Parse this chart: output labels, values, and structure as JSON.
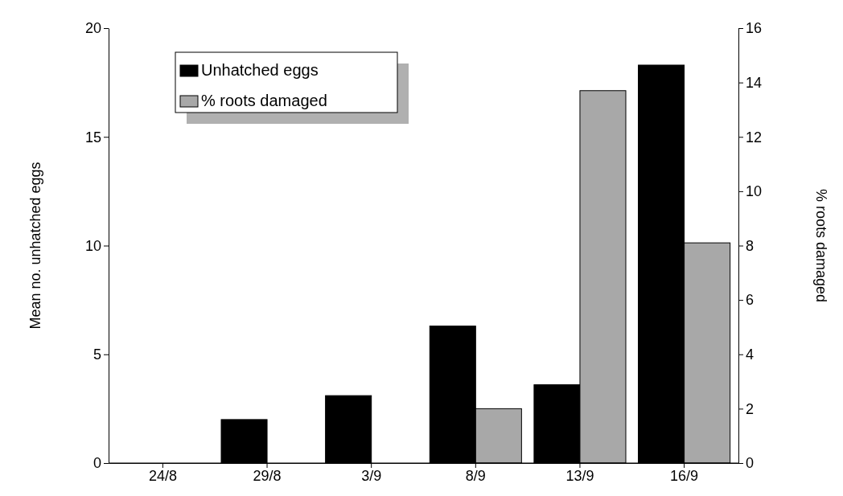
{
  "chart_data": {
    "type": "bar",
    "categories": [
      "24/8",
      "29/8",
      "3/9",
      "8/9",
      "13/9",
      "16/9"
    ],
    "series": [
      {
        "name": "Unhatched eggs",
        "color": "#000000",
        "values": [
          0,
          2.0,
          3.1,
          6.3,
          3.6,
          18.3
        ]
      },
      {
        "name": "% roots damaged",
        "color": "#a8a8a8",
        "axis": "y2",
        "values": [
          0,
          0,
          0,
          2.0,
          13.7,
          8.1
        ]
      }
    ],
    "ylabel": "Mean no. unhatched eggs",
    "y2label": "% roots damaged",
    "ylim": [
      0,
      20
    ],
    "yticks": [
      0,
      5,
      10,
      15,
      20
    ],
    "y2lim": [
      0,
      16
    ],
    "y2ticks": [
      0,
      2,
      4,
      6,
      8,
      10,
      12,
      14,
      16
    ],
    "grid": false,
    "legend": "top left"
  }
}
